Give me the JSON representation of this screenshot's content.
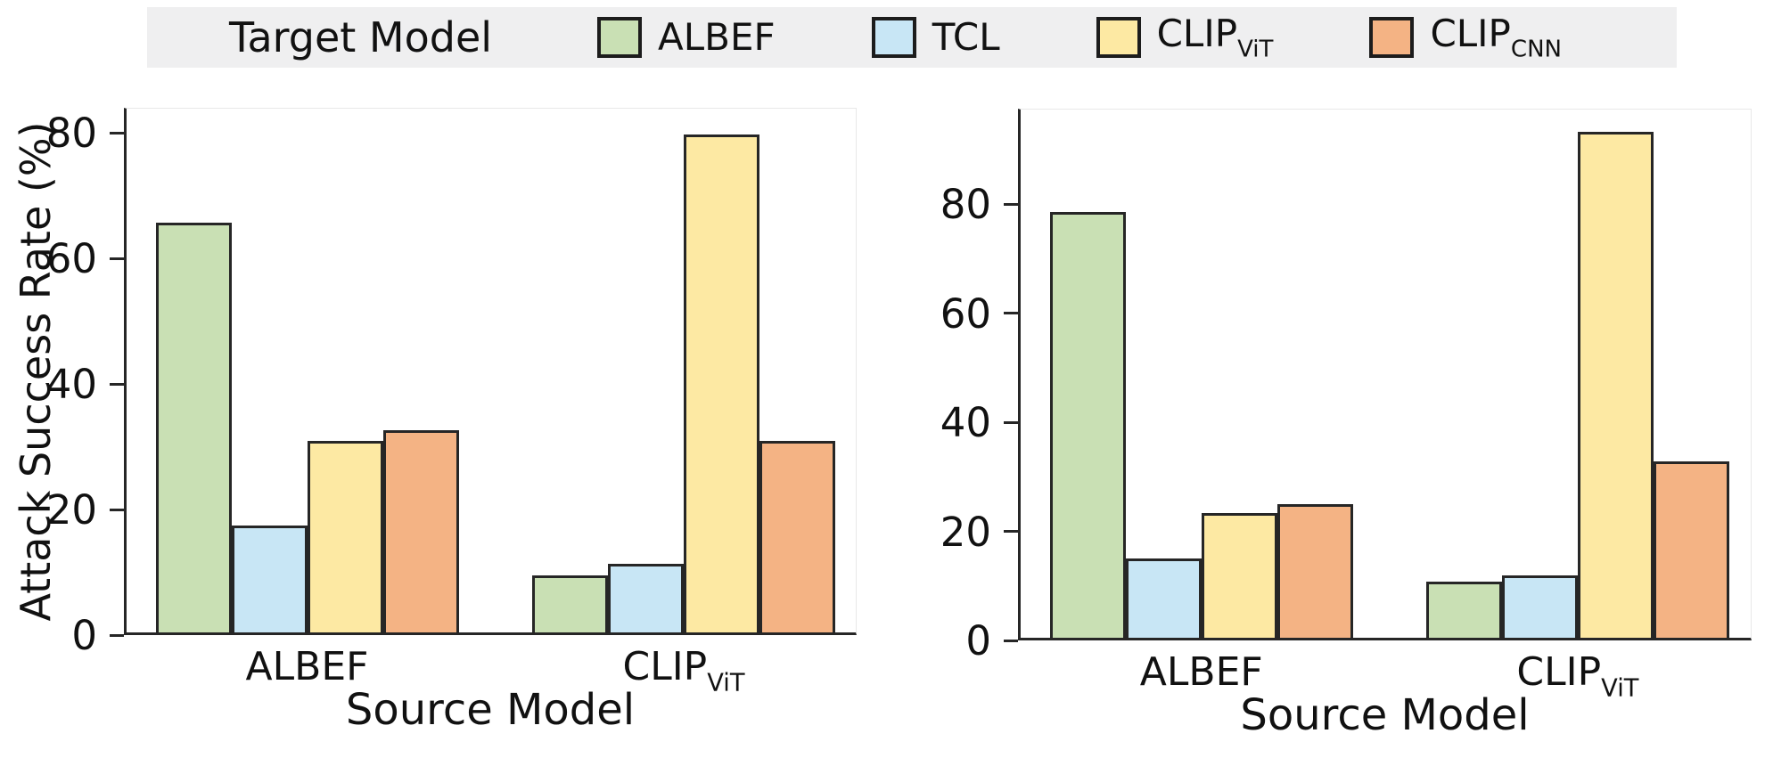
{
  "figure": {
    "background": "#ffffff",
    "text_color": "#111111",
    "edge_color": "#262626"
  },
  "legend": {
    "title": "Target Model",
    "background": "#efeff0",
    "items": [
      {
        "name": "ALBEF",
        "label": "ALBEF",
        "sub": "",
        "color": "#c9e0b4"
      },
      {
        "name": "TCL",
        "label": "TCL",
        "sub": "",
        "color": "#c8e6f5"
      },
      {
        "name": "CLIP_ViT",
        "label": "CLIP",
        "sub": "ViT",
        "color": "#fde9a3"
      },
      {
        "name": "CLIP_CNN",
        "label": "CLIP",
        "sub": "CNN",
        "color": "#f4b384"
      }
    ]
  },
  "chart_data": [
    {
      "type": "bar",
      "title": "",
      "xlabel": "Source Model",
      "ylabel": "Attack Success Rate (%)",
      "categories": [
        "ALBEF",
        "CLIP_ViT"
      ],
      "categories_rich": [
        {
          "label": "ALBEF",
          "sub": ""
        },
        {
          "label": "CLIP",
          "sub": "ViT"
        }
      ],
      "series": [
        {
          "name": "ALBEF",
          "color": "#c9e0b4",
          "values": [
            65.7,
            9.5
          ]
        },
        {
          "name": "TCL",
          "color": "#c8e6f5",
          "values": [
            17.5,
            11.3
          ]
        },
        {
          "name": "CLIP_ViT",
          "color": "#fde9a3",
          "values": [
            31.0,
            79.8
          ]
        },
        {
          "name": "CLIP_CNN",
          "color": "#f4b384",
          "values": [
            32.7,
            31.0
          ]
        }
      ],
      "yticks": [
        0,
        20,
        40,
        60,
        80
      ],
      "ylim": [
        0,
        84
      ],
      "grid": false,
      "legend_position": "shared-top"
    },
    {
      "type": "bar",
      "title": "",
      "xlabel": "Source Model",
      "ylabel": "",
      "categories": [
        "ALBEF",
        "CLIP_ViT"
      ],
      "categories_rich": [
        {
          "label": "ALBEF",
          "sub": ""
        },
        {
          "label": "CLIP",
          "sub": "ViT"
        }
      ],
      "series": [
        {
          "name": "ALBEF",
          "color": "#c9e0b4",
          "values": [
            78.5,
            10.8
          ]
        },
        {
          "name": "TCL",
          "color": "#c8e6f5",
          "values": [
            15.0,
            12.0
          ]
        },
        {
          "name": "CLIP_ViT",
          "color": "#fde9a3",
          "values": [
            23.3,
            93.2
          ]
        },
        {
          "name": "CLIP_CNN",
          "color": "#f4b384",
          "values": [
            25.0,
            32.8
          ]
        }
      ],
      "yticks": [
        0,
        20,
        40,
        60,
        80
      ],
      "ylim": [
        0,
        97.5
      ],
      "grid": false,
      "legend_position": "shared-top"
    }
  ]
}
